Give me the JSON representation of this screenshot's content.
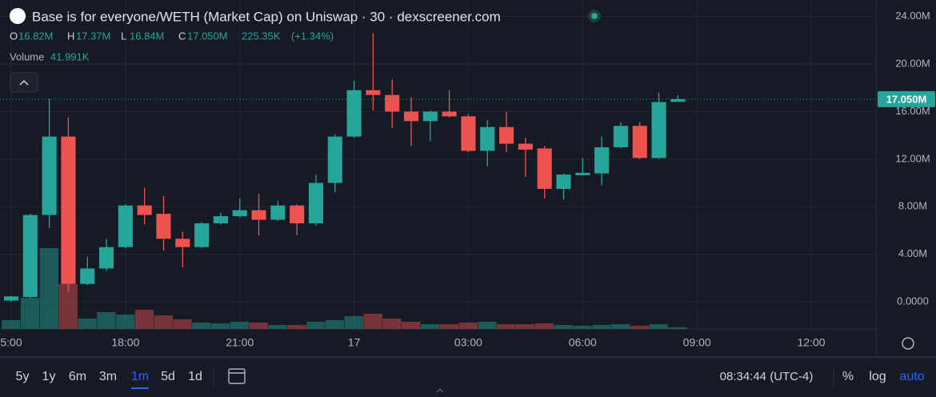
{
  "chart_data": {
    "type": "candlestick",
    "title": "Base is for everyone/WETH (Market Cap) on Uniswap · 30 · dexscreener.com",
    "header": [
      {
        "key": "O",
        "label": "16.82M"
      },
      {
        "key": "H",
        "label": "17.37M"
      },
      {
        "key": "L",
        "label": "16.84M"
      },
      {
        "key": "C",
        "label": "17.050M"
      }
    ],
    "change": "225.35K",
    "change_pct": "(+1.34%)",
    "up_color": "#26a69a",
    "down_color": "#ef5350",
    "open": [
      100000,
      400000,
      7300000,
      13900000,
      1500000,
      2800000,
      4600000,
      8100000,
      7400000,
      5300000,
      4600000,
      6600000,
      7200000,
      7700000,
      6900000,
      8100000,
      6600000,
      10000000,
      13900000,
      17800000,
      17400000,
      16000000,
      15200000,
      16000000,
      15600000,
      12700000,
      14700000,
      13300000,
      12900000,
      9500000,
      10650000,
      10800000,
      13000000,
      14800000,
      12100000,
      16820000
    ],
    "high": [
      500000,
      7400000,
      17100000,
      15500000,
      3800000,
      5300000,
      8200000,
      9600000,
      8900000,
      5900000,
      6700000,
      7500000,
      8700000,
      9100000,
      8500000,
      8200000,
      10700000,
      14100000,
      18600000,
      22600000,
      18700000,
      17200000,
      16100000,
      17800000,
      15800000,
      15300000,
      16000000,
      13800000,
      13100000,
      10800000,
      12100000,
      13900000,
      15100000,
      15100000,
      17600000,
      17370000
    ],
    "low": [
      0,
      300000,
      6200000,
      800000,
      1400000,
      2600000,
      4500000,
      6500000,
      4300000,
      2900000,
      4500000,
      6500000,
      7100000,
      5600000,
      6800000,
      5600000,
      6400000,
      9200000,
      13800000,
      16100000,
      14600000,
      13100000,
      13500000,
      15500000,
      12600000,
      11400000,
      12600000,
      10500000,
      8700000,
      8600000,
      10600000,
      9800000,
      12900000,
      12000000,
      12000000,
      16840000
    ],
    "close": [
      450000,
      7300000,
      13900000,
      1500000,
      2800000,
      4600000,
      8100000,
      7300000,
      5300000,
      4600000,
      6600000,
      7200000,
      7700000,
      6900000,
      8100000,
      6600000,
      10000000,
      13900000,
      17800000,
      17400000,
      16000000,
      15200000,
      16000000,
      15600000,
      12700000,
      14700000,
      13300000,
      12800000,
      9500000,
      10700000,
      10850000,
      13000000,
      14800000,
      12100000,
      16800000,
      17050000
    ],
    "volume": {
      "name": "Volume",
      "label": "41.991K",
      "values": [
        220000,
        780000,
        2020000,
        1120000,
        260000,
        420000,
        360000,
        480000,
        340000,
        240000,
        160000,
        140000,
        180000,
        160000,
        100000,
        100000,
        180000,
        220000,
        320000,
        380000,
        260000,
        180000,
        120000,
        120000,
        160000,
        180000,
        120000,
        120000,
        140000,
        100000,
        80000,
        100000,
        120000,
        80000,
        120000,
        41991
      ]
    },
    "last_price": {
      "value": 17050000,
      "label": "17.050M"
    },
    "ylim": [
      -2290000,
      25390000
    ],
    "yticks": [
      {
        "value": 0,
        "label": "0.0000"
      },
      {
        "value": 4000000,
        "label": "4.00M"
      },
      {
        "value": 8000000,
        "label": "8.00M"
      },
      {
        "value": 12000000,
        "label": "12.00M"
      },
      {
        "value": 16000000,
        "label": "16.00M"
      },
      {
        "value": 20000000,
        "label": "20.00M"
      },
      {
        "value": 24000000,
        "label": "24.00M"
      }
    ],
    "xlim": [
      -0.588,
      45.4
    ],
    "xticks": [
      {
        "value": 0,
        "label": "5:00"
      },
      {
        "value": 6,
        "label": "18:00"
      },
      {
        "value": 12,
        "label": "21:00"
      },
      {
        "value": 18,
        "label": "17"
      },
      {
        "value": 24,
        "label": "03:00"
      },
      {
        "value": 30,
        "label": "06:00"
      },
      {
        "value": 36,
        "label": "09:00"
      },
      {
        "value": 42,
        "label": "12:00"
      }
    ],
    "grid": true,
    "toolbar": {
      "ranges": [
        "5y",
        "1y",
        "6m",
        "3m",
        "1m",
        "5d",
        "1d"
      ],
      "active_range": "1m",
      "time": "08:34:44 (UTC-4)",
      "percent": "%",
      "log": "log",
      "auto": "auto"
    }
  }
}
